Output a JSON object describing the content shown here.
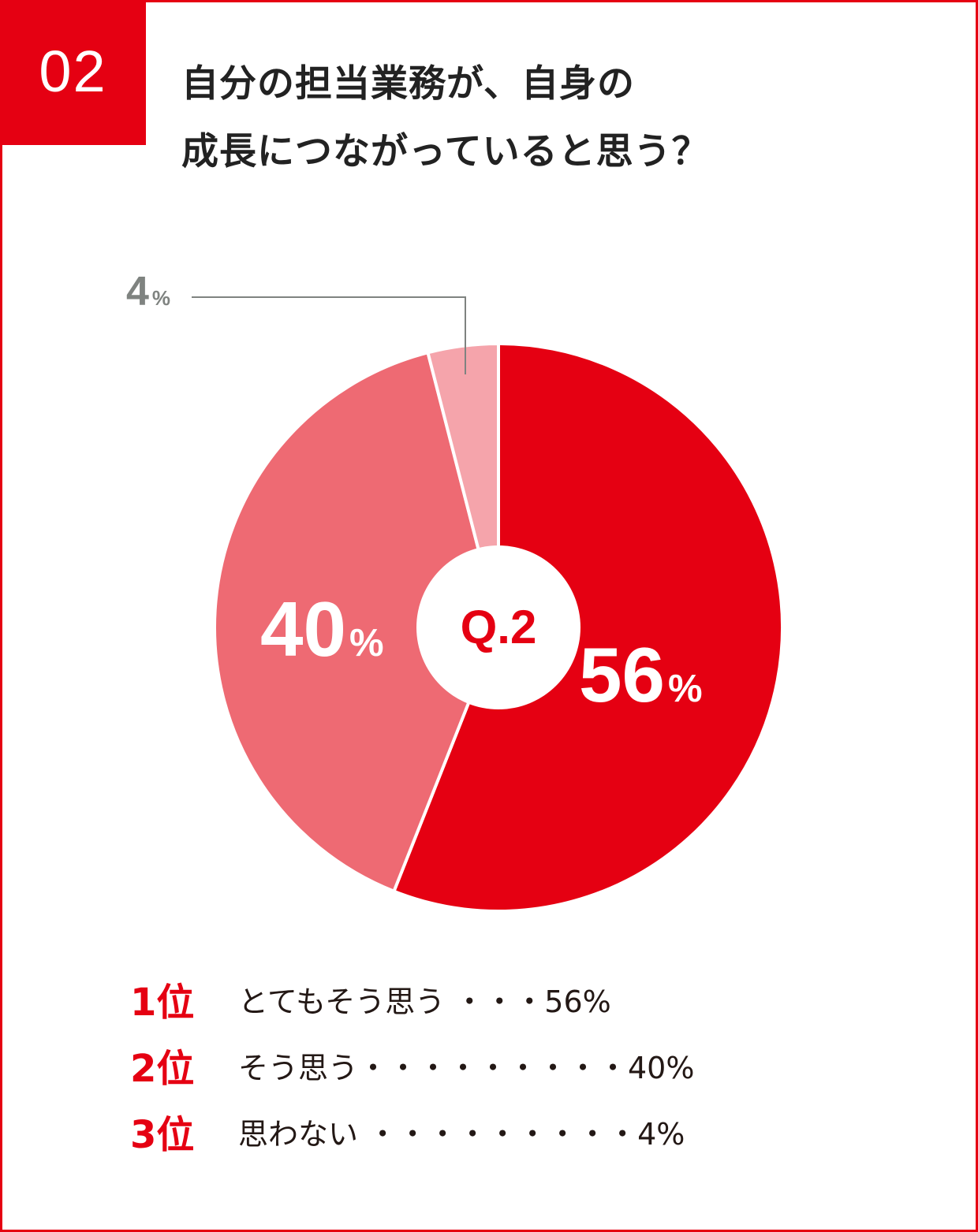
{
  "badge": {
    "number": "02"
  },
  "title": {
    "line1": "自分の担当業務が、自身の",
    "line2": "成長につながっていると思う？"
  },
  "center_label": "Q.2",
  "slice_labels": {
    "s1": {
      "value": "56",
      "unit": "%"
    },
    "s2": {
      "value": "40",
      "unit": "%"
    },
    "s3": {
      "value": "4",
      "unit": "%"
    }
  },
  "ranking": [
    {
      "rank": "1位",
      "text": "とてもそう思う ・・・56%"
    },
    {
      "rank": "2位",
      "text": "そう思う・・・・・・・・・40%"
    },
    {
      "rank": "3位",
      "text": "思わない ・・・・・・・・・4%"
    }
  ],
  "colors": {
    "brand_red": "#e50012",
    "slice_1": "#e50012",
    "slice_2": "#ee6a73",
    "slice_3": "#f5a4ab",
    "callout_gray": "#7f8380"
  },
  "chart_data": {
    "type": "pie",
    "title": "自分の担当業務が、自身の成長につながっていると思う？",
    "center_label": "Q.2",
    "categories": [
      "とてもそう思う",
      "そう思う",
      "思わない"
    ],
    "values": [
      56,
      40,
      4
    ],
    "unit": "%",
    "colors": [
      "#e50012",
      "#ee6a73",
      "#f5a4ab"
    ],
    "donut": true,
    "start_angle": "12 o'clock, clockwise",
    "legend": "ranked list below chart"
  }
}
